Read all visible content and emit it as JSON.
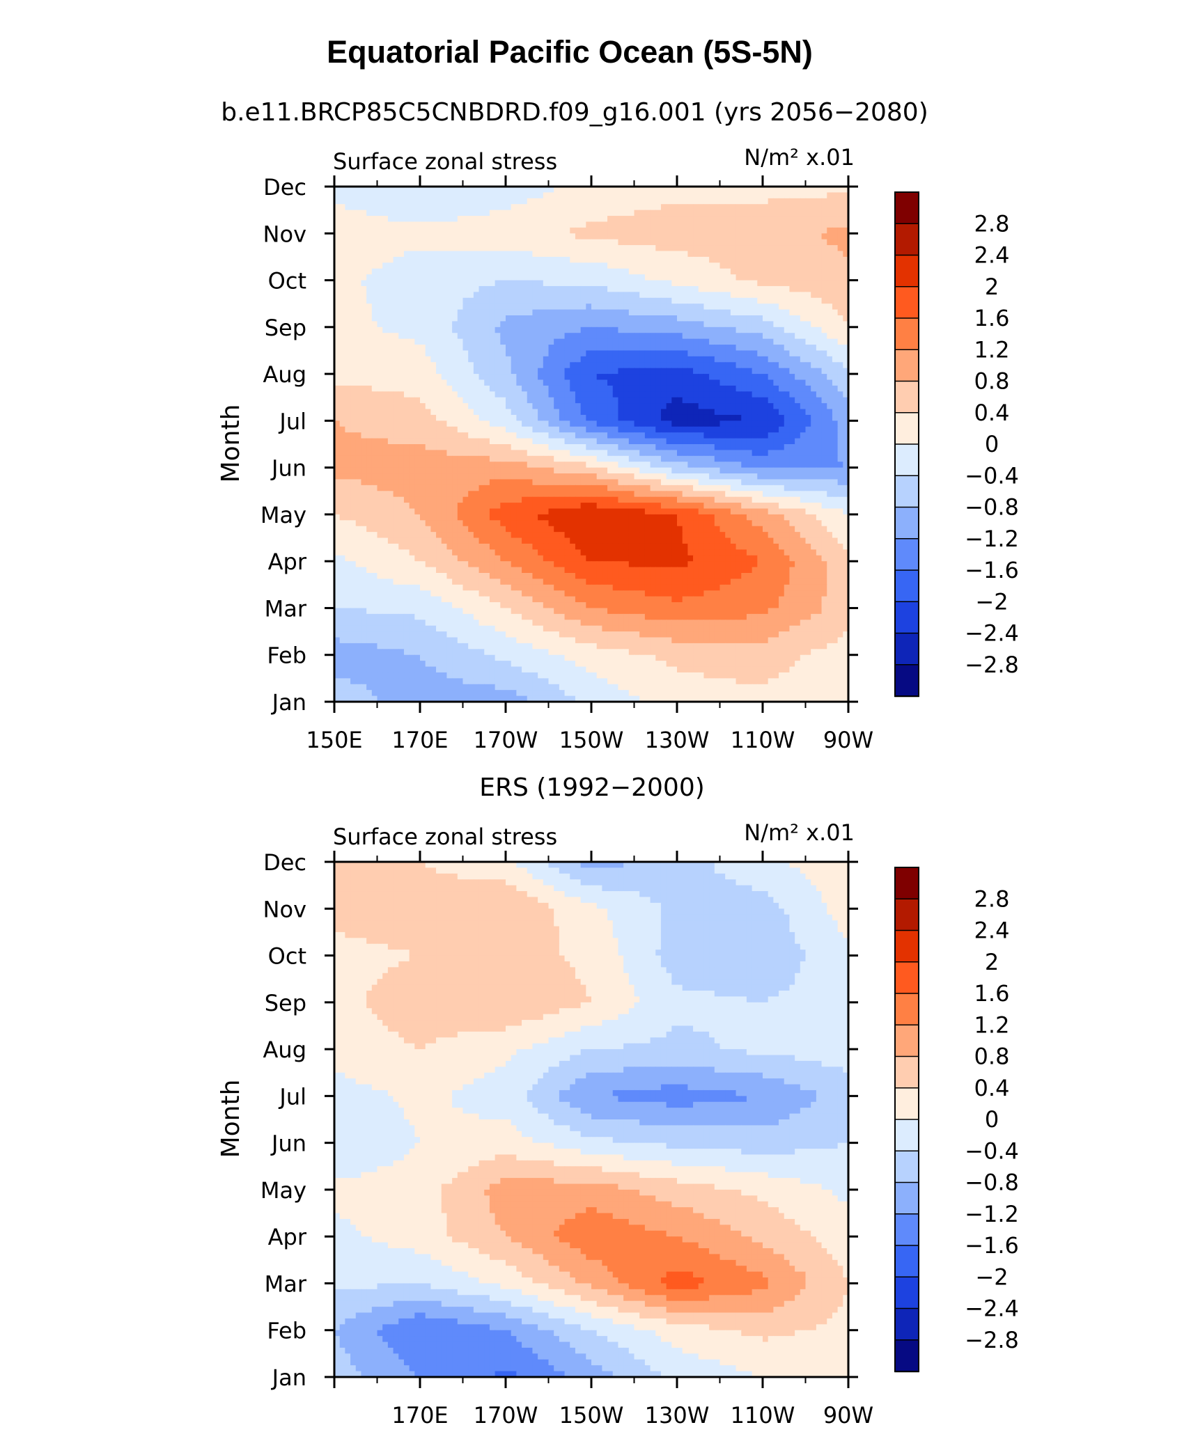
{
  "figure": {
    "title": "Equatorial Pacific Ocean (5S-5N)"
  },
  "colorbar": {
    "tick_labels": [
      "2.8",
      "2.4",
      "2",
      "1.6",
      "1.2",
      "0.8",
      "0.4",
      "0",
      "−0.4",
      "−0.8",
      "−1.2",
      "−1.6",
      "−2",
      "−2.4",
      "−2.8"
    ],
    "colors_top_to_bottom": [
      "#7f0000",
      "#b31a00",
      "#e33200",
      "#ff5a1f",
      "#ff8044",
      "#ffa779",
      "#ffcdb0",
      "#ffeede",
      "#dcecfe",
      "#b7d2fe",
      "#8cb0fc",
      "#5f8afb",
      "#3766f4",
      "#1d42e0",
      "#0e25b8",
      "#060a83"
    ]
  },
  "chart_data": [
    {
      "type": "heatmap",
      "subtitle": "b.e11.BRCP85C5CNBDRD.f09_g16.001 (yrs 2056−2080)",
      "left_label": "Surface zonal stress",
      "units_label": "N/m² x.01",
      "ylabel": "Month",
      "y_tick_labels": [
        "Jan",
        "Feb",
        "Mar",
        "Apr",
        "May",
        "Jun",
        "Jul",
        "Aug",
        "Sep",
        "Oct",
        "Nov",
        "Dec"
      ],
      "x_tick_labels": [
        "150E",
        "170E",
        "170W",
        "150W",
        "130W",
        "110W",
        "90W"
      ],
      "x_range": [
        "150E",
        "90W"
      ],
      "y_range": [
        "Jan",
        "Dec"
      ],
      "contour_levels": [
        -2.8,
        -2.4,
        -2,
        -1.6,
        -1.2,
        -0.8,
        -0.4,
        0,
        0.4,
        0.8,
        1.2,
        1.6,
        2,
        2.4,
        2.8
      ],
      "longitudes_degE": [
        150,
        170,
        190,
        210,
        230,
        250,
        270
      ],
      "months": [
        1,
        2,
        3,
        4,
        5,
        6,
        7,
        8,
        9,
        10,
        11,
        12
      ],
      "values": [
        [
          -0.6,
          -1.0,
          -1.0,
          -0.3,
          0.2,
          0.3,
          0.0
        ],
        [
          -1.0,
          -0.8,
          -0.3,
          0.2,
          0.5,
          0.6,
          0.2
        ],
        [
          -0.4,
          -0.3,
          0.4,
          1.2,
          1.5,
          1.3,
          0.6
        ],
        [
          -0.1,
          0.4,
          1.2,
          2.0,
          2.1,
          1.6,
          0.5
        ],
        [
          0.4,
          0.8,
          1.8,
          2.4,
          2.0,
          1.0,
          0.0
        ],
        [
          0.9,
          1.0,
          1.0,
          0.5,
          -0.6,
          -1.3,
          -1.2
        ],
        [
          0.8,
          0.6,
          -0.2,
          -1.7,
          -2.6,
          -2.4,
          -1.0
        ],
        [
          0.3,
          0.2,
          -0.7,
          -2.0,
          -2.2,
          -1.6,
          -0.5
        ],
        [
          0.1,
          -0.1,
          -0.9,
          -1.2,
          -1.0,
          -0.6,
          0.4
        ],
        [
          0.1,
          -0.2,
          -0.4,
          -0.3,
          0.1,
          0.5,
          0.7
        ],
        [
          0.2,
          0.1,
          0.2,
          0.5,
          0.6,
          0.6,
          0.9
        ],
        [
          -0.1,
          -0.4,
          -0.2,
          0.1,
          0.3,
          0.3,
          0.3
        ]
      ]
    },
    {
      "type": "heatmap",
      "subtitle": "ERS (1992−2000)",
      "left_label": "Surface zonal stress",
      "units_label": "N/m² x.01",
      "ylabel": "Month",
      "y_tick_labels": [
        "Jan",
        "Feb",
        "Mar",
        "Apr",
        "May",
        "Jun",
        "Jul",
        "Aug",
        "Sep",
        "Oct",
        "Nov",
        "Dec"
      ],
      "x_tick_labels": [
        "170E",
        "170W",
        "150W",
        "130W",
        "110W",
        "90W"
      ],
      "x_range": [
        "150E",
        "90W"
      ],
      "y_range": [
        "Jan",
        "Dec"
      ],
      "contour_levels": [
        -2.8,
        -2.4,
        -2,
        -1.6,
        -1.2,
        -0.8,
        -0.4,
        0,
        0.4,
        0.8,
        1.2,
        1.6,
        2,
        2.4,
        2.8
      ],
      "longitudes_degE": [
        150,
        170,
        190,
        210,
        230,
        250,
        270
      ],
      "months": [
        1,
        2,
        3,
        4,
        5,
        6,
        7,
        8,
        9,
        10,
        11,
        12
      ],
      "values": [
        [
          -0.6,
          -1.2,
          -1.7,
          -1.0,
          -0.3,
          0.0,
          0.1
        ],
        [
          -0.8,
          -1.6,
          -1.2,
          -0.4,
          0.2,
          0.5,
          0.3
        ],
        [
          -0.3,
          -0.4,
          0.1,
          0.9,
          1.8,
          1.3,
          0.4
        ],
        [
          -0.1,
          0.2,
          0.8,
          1.5,
          1.2,
          0.7,
          0.2
        ],
        [
          0.1,
          0.2,
          1.0,
          1.0,
          0.6,
          0.3,
          -0.1
        ],
        [
          -0.4,
          0.0,
          0.2,
          -0.3,
          -0.5,
          -0.6,
          -0.4
        ],
        [
          -0.2,
          0.1,
          -0.2,
          -1.2,
          -1.4,
          -1.2,
          -0.6
        ],
        [
          0.2,
          0.4,
          0.1,
          -0.4,
          -0.5,
          -0.3,
          -0.2
        ],
        [
          0.3,
          0.6,
          0.8,
          0.4,
          -0.3,
          -0.4,
          -0.2
        ],
        [
          0.3,
          0.4,
          0.6,
          0.3,
          -0.6,
          -0.7,
          -0.1
        ],
        [
          0.5,
          0.6,
          0.8,
          0.1,
          -0.5,
          -0.6,
          0.2
        ],
        [
          0.6,
          0.4,
          0.1,
          -1.0,
          -0.6,
          -0.1,
          0.3
        ]
      ]
    }
  ]
}
